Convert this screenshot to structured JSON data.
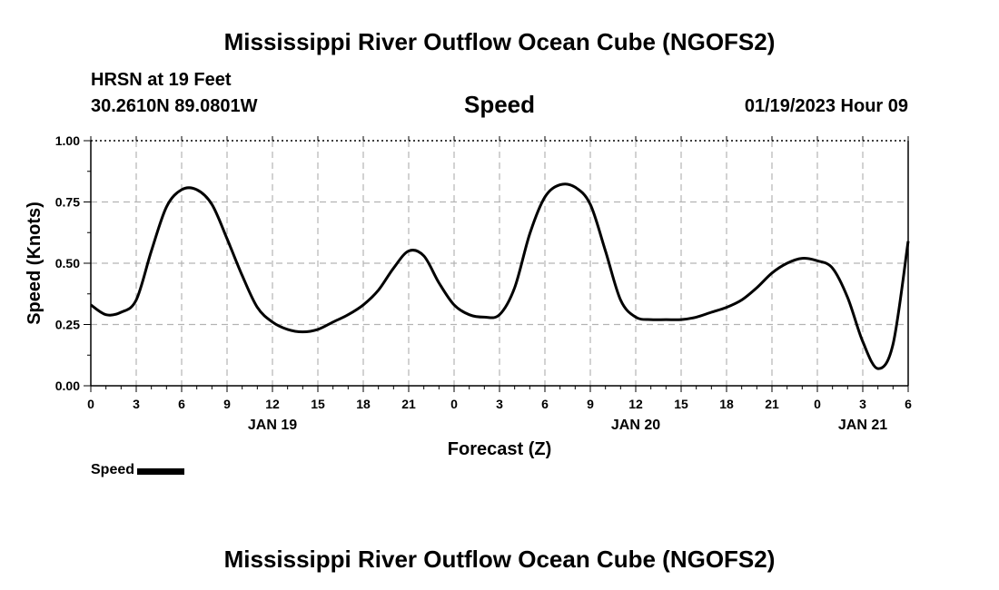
{
  "page": {
    "title_top": "Mississippi River Outflow Ocean Cube (NGOFS2)",
    "title_bottom": "Mississippi River Outflow Ocean Cube (NGOFS2)",
    "station": "HRSN at 19 Feet",
    "coords": "30.2610N  89.0801W",
    "timestamp": "01/19/2023 Hour 09"
  },
  "chart_data": {
    "type": "line",
    "title": "Speed",
    "xlabel": "Forecast (Z)",
    "ylabel": "Speed (Knots)",
    "ylim": [
      0,
      1
    ],
    "yticks": [
      "0.00",
      "0.25",
      "0.50",
      "0.75",
      "1.00"
    ],
    "xlim": [
      0,
      54
    ],
    "xtick_labels": [
      "0",
      "3",
      "6",
      "9",
      "12",
      "15",
      "18",
      "21",
      "0",
      "3",
      "6",
      "9",
      "12",
      "15",
      "18",
      "21",
      "0",
      "3",
      "6"
    ],
    "date_labels": [
      {
        "label": "JAN 19",
        "hour": 12
      },
      {
        "label": "JAN 20",
        "hour": 36
      },
      {
        "label": "JAN 21",
        "hour": 51
      }
    ],
    "grid": true,
    "legend": "bottom-left",
    "series": [
      {
        "name": "Speed",
        "color": "#000000",
        "x": [
          0,
          1,
          2,
          3,
          4,
          5,
          6,
          7,
          8,
          9,
          10,
          11,
          12,
          13,
          14,
          15,
          16,
          17,
          18,
          19,
          20,
          21,
          22,
          23,
          24,
          25,
          26,
          27,
          28,
          29,
          30,
          31,
          32,
          33,
          34,
          35,
          36,
          37,
          38,
          39,
          40,
          41,
          42,
          43,
          44,
          45,
          46,
          47,
          48,
          49,
          50,
          51,
          52,
          53,
          54
        ],
        "values": [
          0.33,
          0.29,
          0.3,
          0.35,
          0.55,
          0.73,
          0.8,
          0.8,
          0.74,
          0.6,
          0.45,
          0.32,
          0.26,
          0.23,
          0.22,
          0.23,
          0.26,
          0.29,
          0.33,
          0.39,
          0.48,
          0.55,
          0.53,
          0.42,
          0.33,
          0.29,
          0.28,
          0.29,
          0.4,
          0.62,
          0.77,
          0.82,
          0.81,
          0.74,
          0.55,
          0.35,
          0.28,
          0.27,
          0.27,
          0.27,
          0.28,
          0.3,
          0.32,
          0.35,
          0.4,
          0.46,
          0.5,
          0.52,
          0.51,
          0.48,
          0.36,
          0.18,
          0.07,
          0.17,
          0.59
        ]
      }
    ]
  }
}
